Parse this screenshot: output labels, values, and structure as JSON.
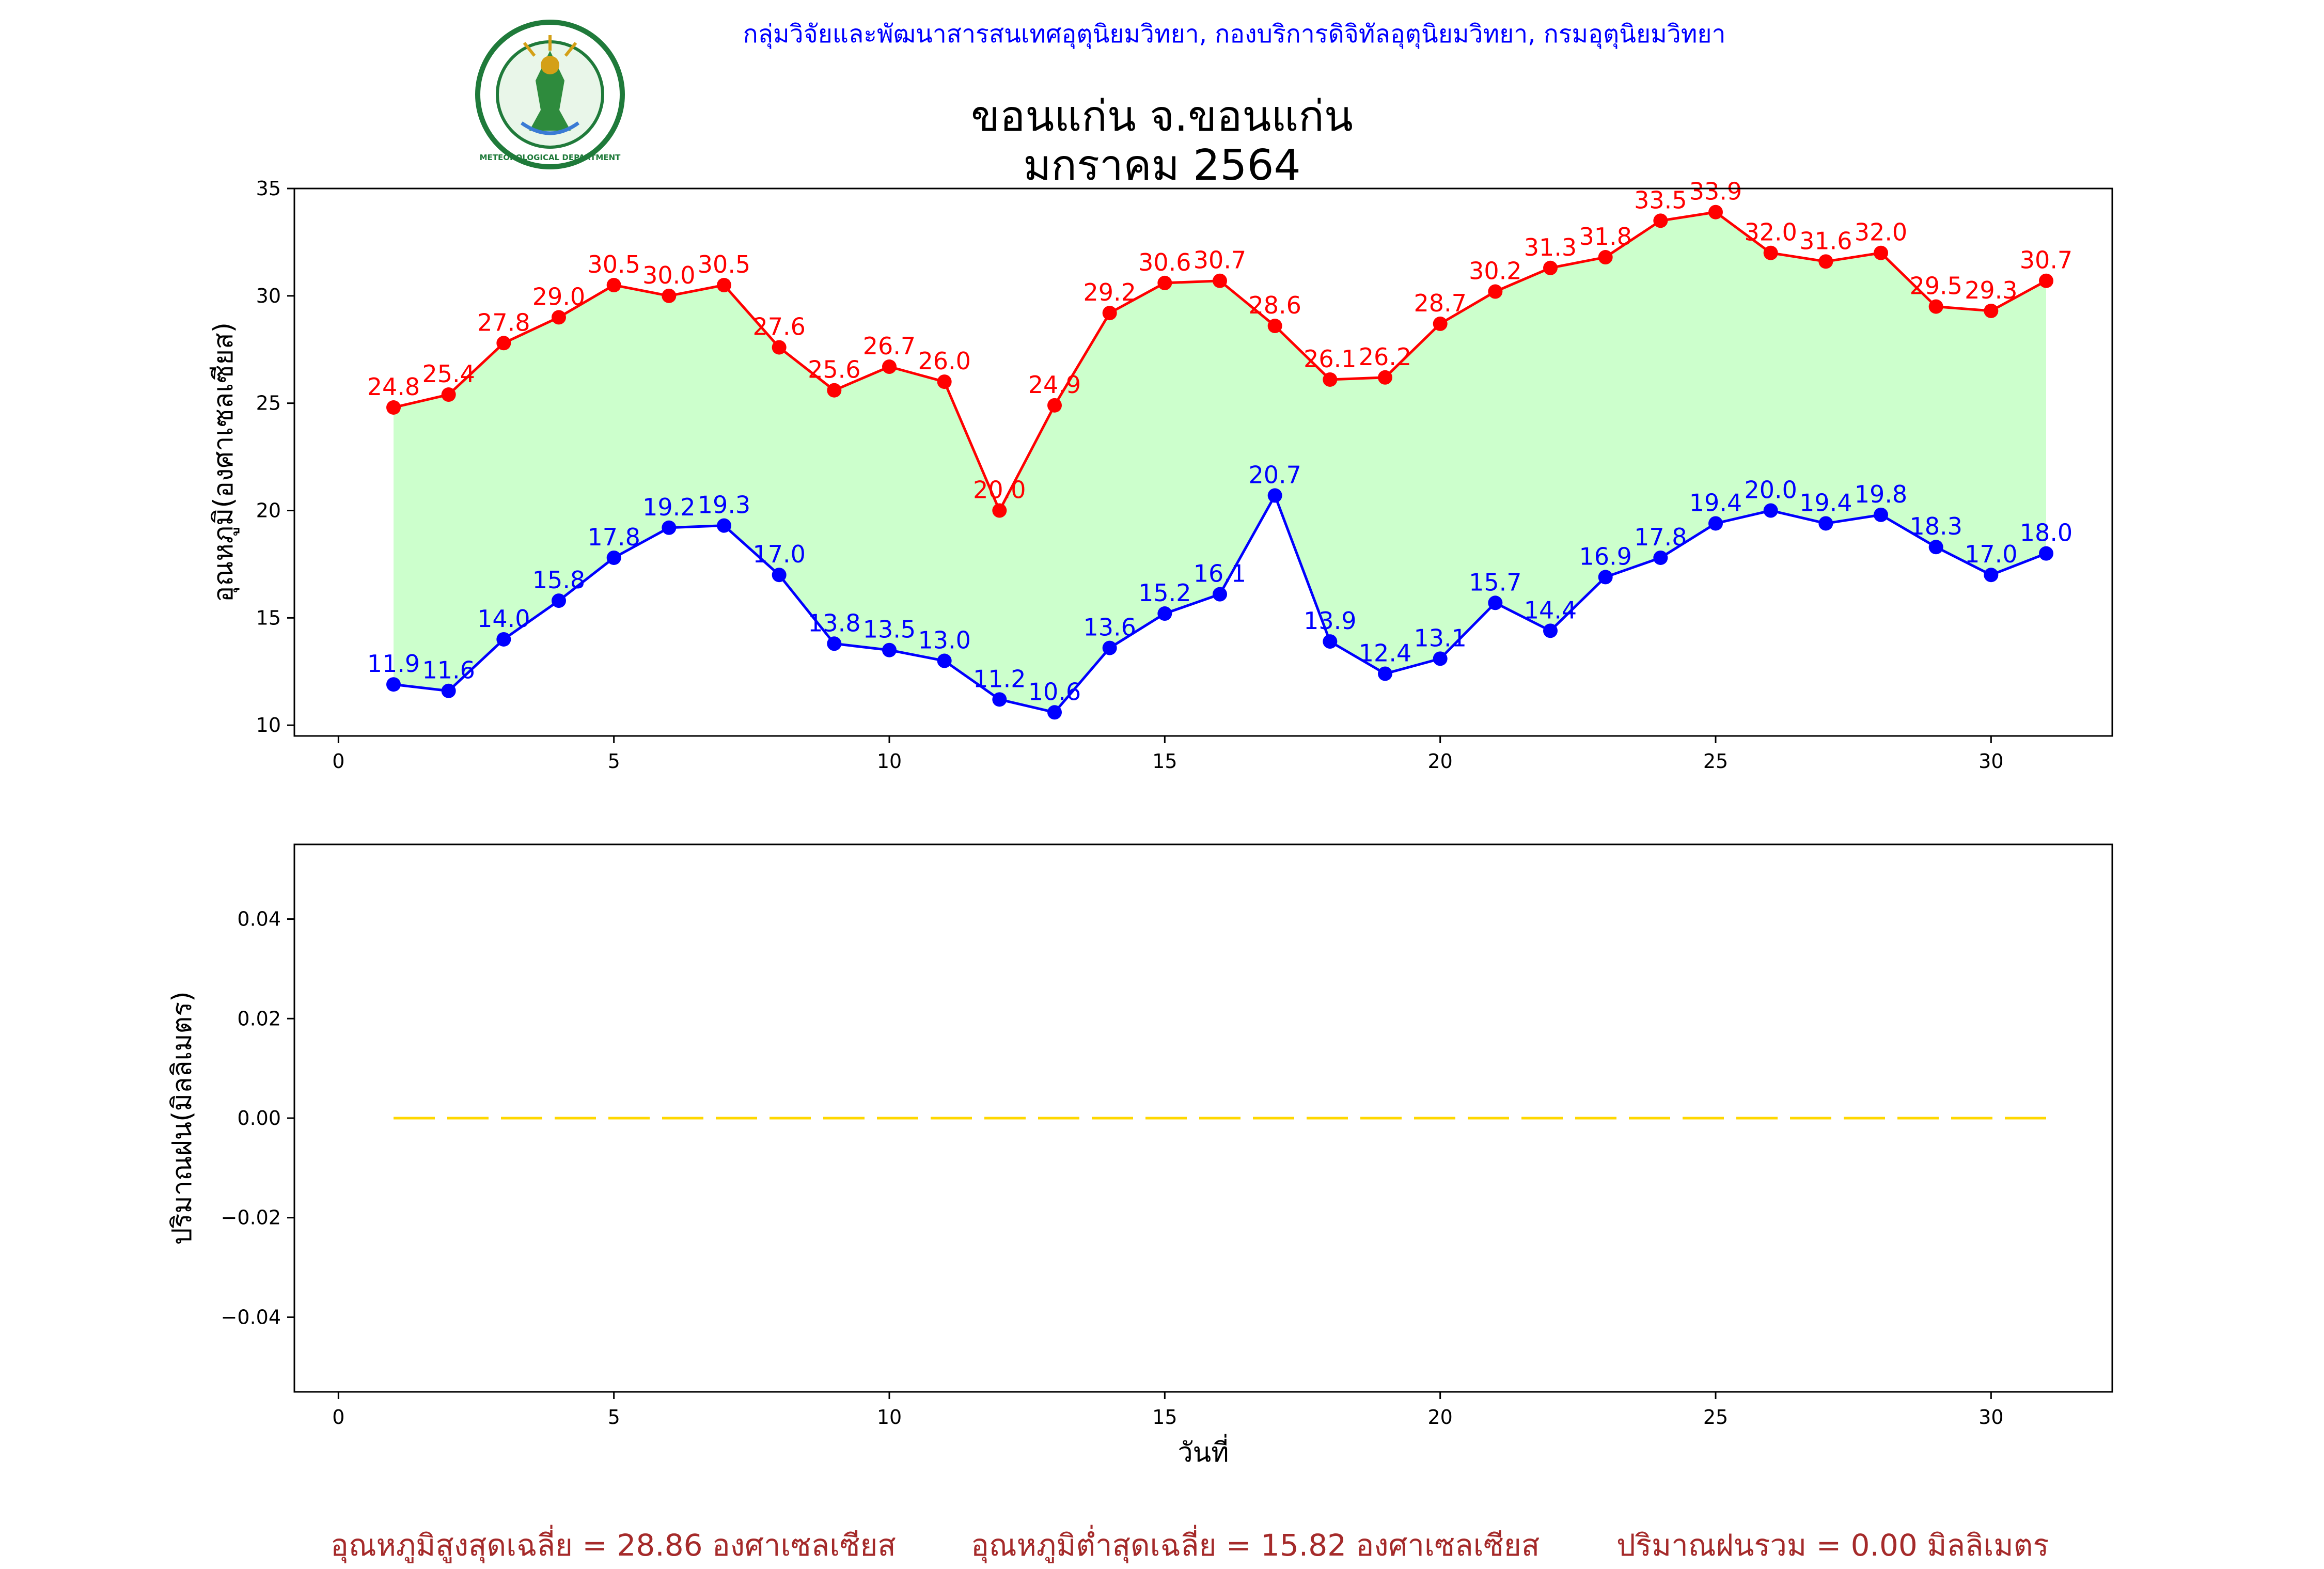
{
  "header": {
    "agency": "กลุ่มวิจัยและพัฒนาสารสนเทศอุตุนิยมวิทยา, กองบริการดิจิทัลอุตุนิยมวิทยา, กรมอุตุนิยมวิทยา",
    "logo_text": "METEOROLOGICAL DEPARTMENT",
    "station": "ขอนแก่น จ.ขอนแก่น",
    "period": "มกราคม 2564"
  },
  "chart_data": [
    {
      "type": "line",
      "ylabel": "อุณหภูมิ(องศาเซลเซียส)",
      "xlabel": "",
      "xlim": [
        -0.8,
        32.2
      ],
      "ylim": [
        9.5,
        35
      ],
      "xticks": [
        0,
        5,
        10,
        15,
        20,
        25,
        30
      ],
      "yticks": [
        10,
        15,
        20,
        25,
        30,
        35
      ],
      "fill_between": true,
      "fill_color": "#ccffcc",
      "x": [
        1,
        2,
        3,
        4,
        5,
        6,
        7,
        8,
        9,
        10,
        11,
        12,
        13,
        14,
        15,
        16,
        17,
        18,
        19,
        20,
        21,
        22,
        23,
        24,
        25,
        26,
        27,
        28,
        29,
        30,
        31
      ],
      "series": [
        {
          "color": "#ff0000",
          "values": [
            24.8,
            25.4,
            27.8,
            29.0,
            30.5,
            30.0,
            30.5,
            27.6,
            25.6,
            26.7,
            26.0,
            20.0,
            24.9,
            29.2,
            30.6,
            30.7,
            28.6,
            26.1,
            26.2,
            28.7,
            30.2,
            31.3,
            31.8,
            33.5,
            33.9,
            32.0,
            31.6,
            32.0,
            29.5,
            29.3,
            30.7
          ]
        },
        {
          "color": "#0000ff",
          "values": [
            11.9,
            11.6,
            14.0,
            15.8,
            17.8,
            19.2,
            19.3,
            17.0,
            13.8,
            13.5,
            13.0,
            11.2,
            10.6,
            13.6,
            15.2,
            16.1,
            20.7,
            13.9,
            12.4,
            13.1,
            15.7,
            14.4,
            16.9,
            17.8,
            19.4,
            20.0,
            19.4,
            19.8,
            18.3,
            17.0,
            18.0
          ]
        }
      ]
    },
    {
      "type": "line",
      "ylabel": "ปริมาณฝน(มิลลิเมตร)",
      "xlabel": "วันที่",
      "xlim": [
        -0.8,
        32.2
      ],
      "ylim": [
        -0.055,
        0.055
      ],
      "xticks": [
        0,
        5,
        10,
        15,
        20,
        25,
        30
      ],
      "yticks": [
        -0.04,
        -0.02,
        0.0,
        0.02,
        0.04
      ],
      "ytick_labels": [
        "−0.04",
        "−0.02",
        "0.00",
        "0.02",
        "0.04"
      ],
      "x": [
        1,
        2,
        3,
        4,
        5,
        6,
        7,
        8,
        9,
        10,
        11,
        12,
        13,
        14,
        15,
        16,
        17,
        18,
        19,
        20,
        21,
        22,
        23,
        24,
        25,
        26,
        27,
        28,
        29,
        30,
        31
      ],
      "series": [
        {
          "color": "#ffd700",
          "style": "dashed",
          "values": [
            0,
            0,
            0,
            0,
            0,
            0,
            0,
            0,
            0,
            0,
            0,
            0,
            0,
            0,
            0,
            0,
            0,
            0,
            0,
            0,
            0,
            0,
            0,
            0,
            0,
            0,
            0,
            0,
            0,
            0,
            0
          ]
        }
      ]
    }
  ],
  "footer": {
    "avg_max": "อุณหภูมิสูงสุดเฉลี่ย = 28.86 องศาเซลเซียส",
    "avg_min": "อุณหภูมิต่ำสุดเฉลี่ย = 15.82 องศาเซลเซียส",
    "total_rain": "ปริมาณฝนรวม = 0.00 มิลลิเมตร"
  }
}
